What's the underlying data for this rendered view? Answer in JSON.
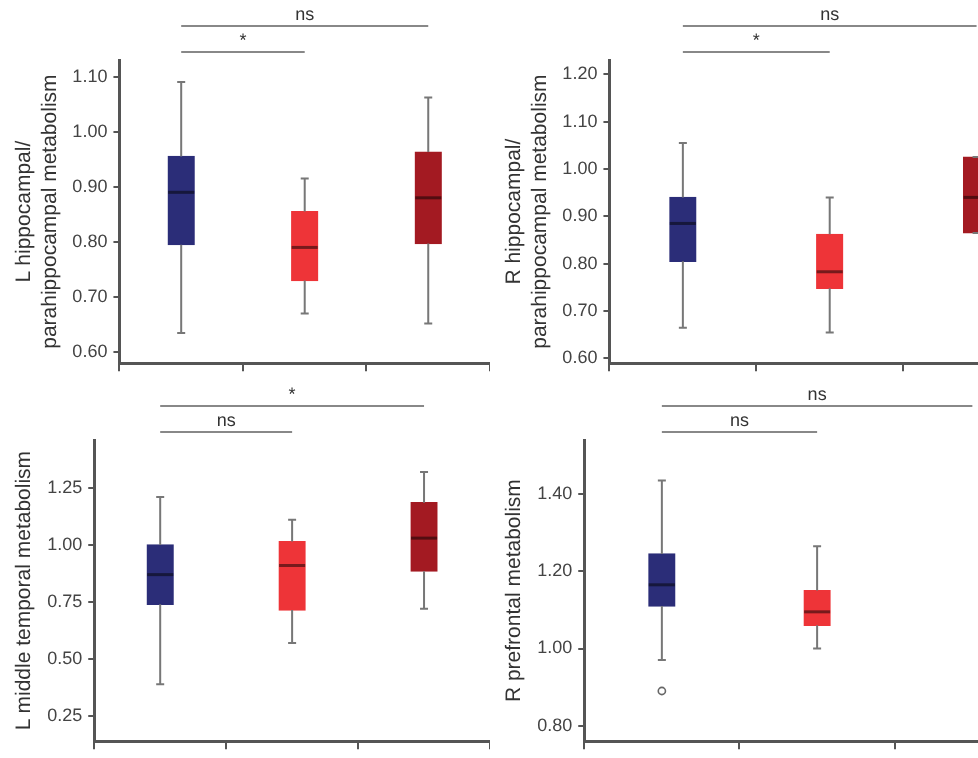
{
  "chart_data": [
    {
      "type": "box",
      "ylabel": "L hippocampal/\nparahippocampal metabolism",
      "categories": [
        null,
        null,
        null
      ],
      "colors": [
        "#2b2d78",
        "#ee3438",
        "#a31a22"
      ],
      "boxes": [
        {
          "low": 0.635,
          "q1": 0.795,
          "median": 0.89,
          "q3": 0.955,
          "high": 1.09
        },
        {
          "low": 0.67,
          "q1": 0.73,
          "median": 0.79,
          "q3": 0.855,
          "high": 0.915
        },
        {
          "low": 0.652,
          "q1": 0.797,
          "median": 0.88,
          "q3": 0.963,
          "high": 1.062
        }
      ],
      "ylim": [
        0.58,
        1.13
      ],
      "yticks": [
        {
          "value": 0.6,
          "label": "0.60"
        },
        {
          "value": 0.7,
          "label": "0.70"
        },
        {
          "value": 0.8,
          "label": "0.80"
        },
        {
          "value": 0.9,
          "label": "0.90"
        },
        {
          "value": 1.0,
          "label": "1.00"
        },
        {
          "value": 1.1,
          "label": "1.10"
        }
      ],
      "tick_labels": "y",
      "annotations": [
        "*",
        "ns"
      ]
    },
    {
      "type": "box",
      "ylabel": "R hippocampal/\nparahippocampal metabolism",
      "categories": [
        null,
        null,
        null
      ],
      "colors": [
        "#2b2d78",
        "#ee3438",
        "#a31a22"
      ],
      "boxes": [
        {
          "low": 0.665,
          "q1": 0.805,
          "median": 0.885,
          "q3": 0.94,
          "high": 1.055
        },
        {
          "low": 0.655,
          "q1": 0.748,
          "median": 0.783,
          "q3": 0.862,
          "high": 0.94
        },
        {
          "low": 0.865,
          "q1": 0.865,
          "median": 0.94,
          "q3": 1.025,
          "high": 1.025
        }
      ],
      "ylim": [
        0.59,
        1.23
      ],
      "yticks": [
        {
          "value": 0.6,
          "label": "0.60"
        },
        {
          "value": 0.7,
          "label": "0.70"
        },
        {
          "value": 0.8,
          "label": "0.80"
        },
        {
          "value": 0.9,
          "label": "0.90"
        },
        {
          "value": 1.0,
          "label": "1.00"
        },
        {
          "value": 1.1,
          "label": "1.10"
        },
        {
          "value": 1.2,
          "label": "1.20"
        }
      ],
      "tick_labels": "y",
      "annotations": [
        "*",
        "ns"
      ]
    },
    {
      "type": "box",
      "ylabel": "L middle temporal metabolism",
      "categories": [
        null,
        null,
        null
      ],
      "colors": [
        "#2b2d78",
        "#ee3438",
        "#a31a22"
      ],
      "boxes": [
        {
          "low": 0.39,
          "q1": 0.74,
          "median": 0.87,
          "q3": 1.0,
          "high": 1.21
        },
        {
          "low": 0.57,
          "q1": 0.715,
          "median": 0.91,
          "q3": 1.015,
          "high": 1.11
        },
        {
          "low": 0.72,
          "q1": 0.885,
          "median": 1.03,
          "q3": 1.185,
          "high": 1.32
        }
      ],
      "ylim": [
        0.14,
        1.46
      ],
      "yticks": [
        {
          "value": 0.25,
          "label": "0.25"
        },
        {
          "value": 0.5,
          "label": "0.50"
        },
        {
          "value": 0.75,
          "label": "0.75"
        },
        {
          "value": 1.0,
          "label": "1.00"
        },
        {
          "value": 1.25,
          "label": "1.25"
        }
      ],
      "tick_labels": "y",
      "annotations": [
        "ns",
        "*"
      ]
    },
    {
      "type": "box",
      "ylabel": "R prefrontal metabolism",
      "categories": [
        null,
        null,
        null
      ],
      "colors": [
        "#2b2d78",
        "#ee3438",
        "#a31a22"
      ],
      "boxes": [
        {
          "low": 0.97,
          "q1": 1.11,
          "median": 1.165,
          "q3": 1.245,
          "high": 1.435,
          "outliers": [
            0.89
          ]
        },
        {
          "low": 1.0,
          "q1": 1.06,
          "median": 1.095,
          "q3": 1.15,
          "high": 1.265
        },
        null
      ],
      "ylim": [
        0.76,
        1.54
      ],
      "yticks": [
        {
          "value": 0.8,
          "label": "0.80"
        },
        {
          "value": 1.0,
          "label": "1.00"
        },
        {
          "value": 1.2,
          "label": "1.20"
        },
        {
          "value": 1.4,
          "label": "1.40"
        }
      ],
      "tick_labels": "y",
      "annotations": [
        "ns",
        "ns"
      ]
    }
  ]
}
